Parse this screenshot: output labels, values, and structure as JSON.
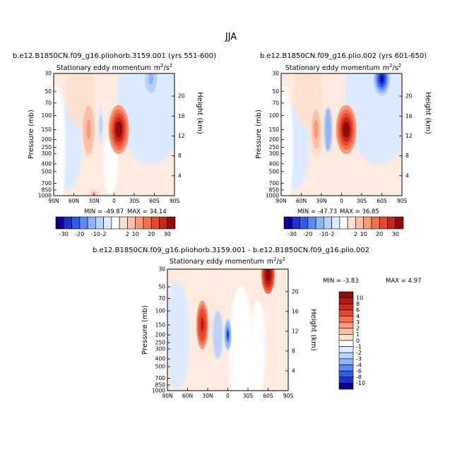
{
  "page_title": "JJA",
  "chart_data": [
    {
      "type": "heatmap",
      "title": "b.e12.B1850CN.f09_g16.pliohorb.3159.001 (yrs 551-600)",
      "subtitle": "Stationary eddy momentum m²/s²",
      "subtitle_main": "Stationary eddy momentum",
      "units_base": "m",
      "units_mid": "/s",
      "units_exp": "2",
      "ylabel": "Pressure (mb)",
      "y2label": "Height (km)",
      "x_ticks": [
        "90N",
        "60N",
        "30N",
        "0",
        "30S",
        "60S",
        "90S"
      ],
      "y_ticks": [
        "30",
        "50",
        "70",
        "100",
        "150",
        "200",
        "250",
        "300",
        "400",
        "500",
        "700",
        "850",
        "1000"
      ],
      "y2_ticks": [
        "20",
        "16",
        "12",
        "8",
        "4"
      ],
      "min_label": "MIN = -49.87",
      "max_label": "MAX = 34.14",
      "stats": {
        "min": -49.87,
        "max": 34.14
      },
      "features": [
        {
          "lat": -7,
          "p": 150,
          "value": 34,
          "sign": "positive"
        },
        {
          "lat": 38,
          "p": 150,
          "value": 15,
          "sign": "positive"
        },
        {
          "lat": 20,
          "p": 130,
          "value": -10,
          "sign": "negative"
        },
        {
          "lat": -55,
          "p": 35,
          "value": -15,
          "sign": "negative"
        },
        {
          "lat": 30,
          "p": 950,
          "value": 10,
          "sign": "positive"
        }
      ]
    },
    {
      "type": "heatmap",
      "title": "b.e12.B1850CN.f09_g16.plio.002 (yrs 601-650)",
      "subtitle": "Stationary eddy momentum m²/s²",
      "subtitle_main": "Stationary eddy momentum",
      "units_base": "m",
      "units_mid": "/s",
      "units_exp": "2",
      "ylabel": "Pressure (mb)",
      "y2label": "Height (km)",
      "x_ticks": [
        "90N",
        "60N",
        "30N",
        "0",
        "30S",
        "60S",
        "90S"
      ],
      "y_ticks": [
        "30",
        "50",
        "70",
        "100",
        "150",
        "200",
        "250",
        "300",
        "400",
        "500",
        "700",
        "850",
        "1000"
      ],
      "y2_ticks": [
        "20",
        "16",
        "12",
        "8",
        "4"
      ],
      "min_label": "MIN = -47.73",
      "max_label": "MAX = 36.85",
      "stats": {
        "min": -47.73,
        "max": 36.85
      },
      "features": [
        {
          "lat": -7,
          "p": 150,
          "value": 36,
          "sign": "positive"
        },
        {
          "lat": 38,
          "p": 150,
          "value": 13,
          "sign": "positive"
        },
        {
          "lat": -60,
          "p": 35,
          "value": -30,
          "sign": "negative"
        }
      ]
    },
    {
      "type": "heatmap",
      "title": "b.e12.B1850CN.f09_g16.pliohorb.3159.001 - b.e12.B1850CN.f09_g16.plio.002",
      "subtitle": "Stationary eddy momentum m²/s²",
      "subtitle_main": "Stationary eddy momentum",
      "units_base": "m",
      "units_mid": "/s",
      "units_exp": "2",
      "ylabel": "Pressure (mb)",
      "y2label": "Height (km)",
      "x_ticks": [
        "90N",
        "60N",
        "30N",
        "0",
        "30S",
        "60S",
        "90S"
      ],
      "y_ticks": [
        "30",
        "50",
        "70",
        "100",
        "150",
        "200",
        "250",
        "300",
        "400",
        "500",
        "700",
        "850",
        "1000"
      ],
      "y2_ticks": [
        "20",
        "16",
        "12",
        "8",
        "4"
      ],
      "min_label": "MIN = -3.83",
      "max_label": "MAX = 4.97",
      "stats": {
        "min": -3.83,
        "max": 4.97
      },
      "features": [
        {
          "lat": 38,
          "p": 150,
          "value": 4,
          "sign": "positive"
        },
        {
          "lat": -60,
          "p": 35,
          "value": 5,
          "sign": "positive"
        },
        {
          "lat": 0,
          "p": 200,
          "value": -3.8,
          "sign": "negative"
        }
      ]
    }
  ],
  "colorbar_top": {
    "labels": [
      "-30",
      "-20",
      "-10",
      "-2",
      "2",
      "10",
      "20",
      "30"
    ],
    "colors": [
      "#08008f",
      "#1e2fcf",
      "#2f5be6",
      "#5b8af0",
      "#8fb4f5",
      "#b9d2fa",
      "#dceafd",
      "#ffffff",
      "#fde1d0",
      "#fbc0a6",
      "#f99a78",
      "#f4704e",
      "#e8462e",
      "#c42717",
      "#8e0c0b"
    ]
  },
  "colorbar_diff": {
    "labels": [
      "10",
      "8",
      "6",
      "4",
      "3",
      "2",
      "1",
      "0",
      "-1",
      "-2",
      "-3",
      "-4",
      "-6",
      "-8",
      "-10"
    ],
    "colors": [
      "#8e0c0b",
      "#b01a12",
      "#cf2a1a",
      "#e8462e",
      "#f4704e",
      "#f99a78",
      "#fbc0a6",
      "#fde1d0",
      "#ffffff",
      "#dceafd",
      "#b9d2fa",
      "#8fb4f5",
      "#5b8af0",
      "#2f5be6",
      "#1e2fcf",
      "#08008f"
    ]
  }
}
